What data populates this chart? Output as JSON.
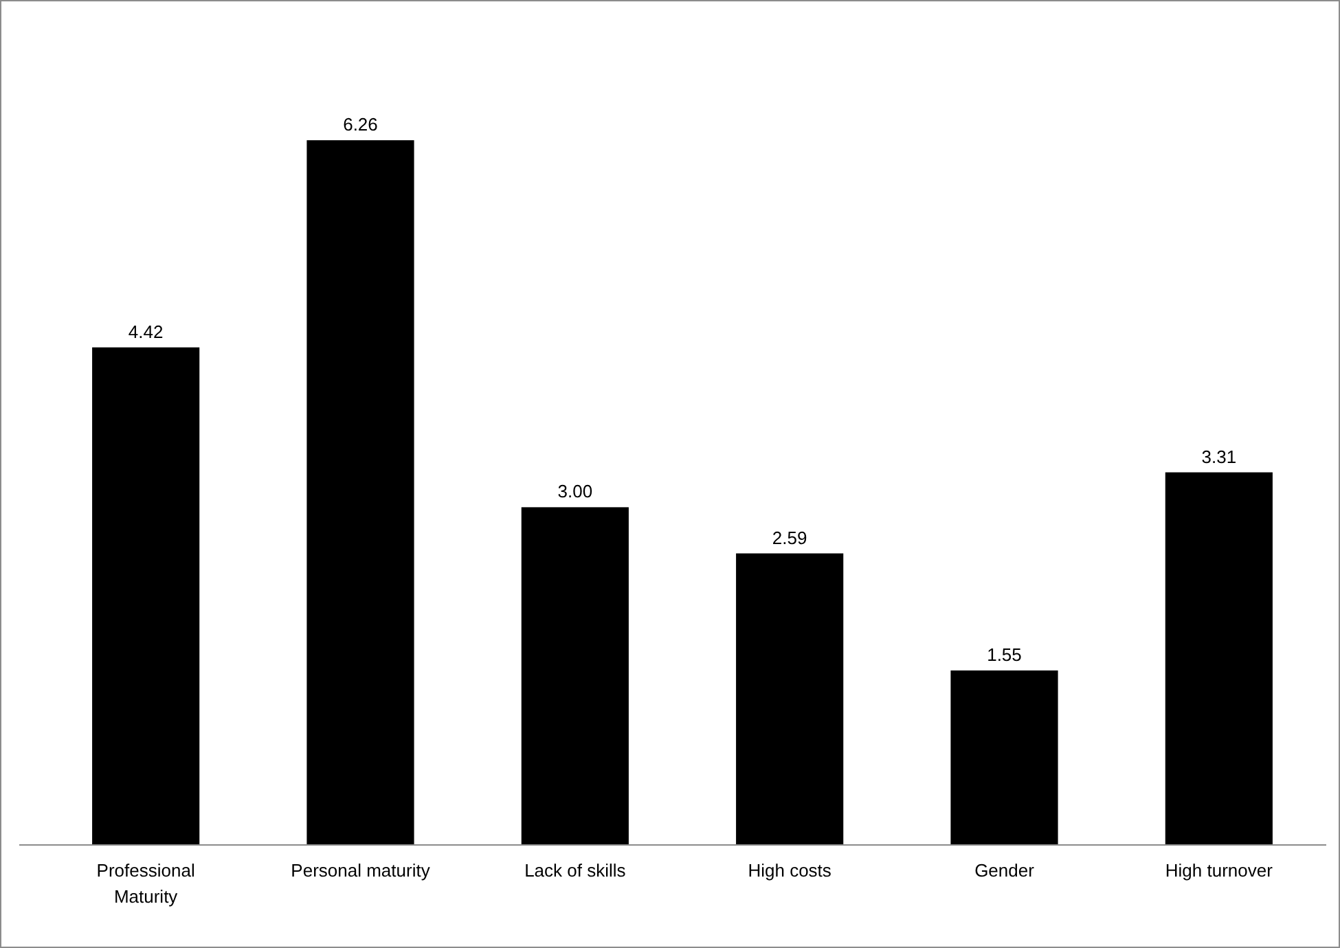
{
  "chart_data": {
    "type": "bar",
    "categories": [
      "Professional Maturity",
      "Personal maturity",
      "Lack of skills",
      "High costs",
      "Gender",
      "High turnover"
    ],
    "values": [
      4.42,
      6.26,
      3.0,
      2.59,
      1.55,
      3.31
    ],
    "value_labels": [
      "4.42",
      "6.26",
      "3.00",
      "2.59",
      "1.55",
      "3.31"
    ],
    "color": "#000000"
  }
}
